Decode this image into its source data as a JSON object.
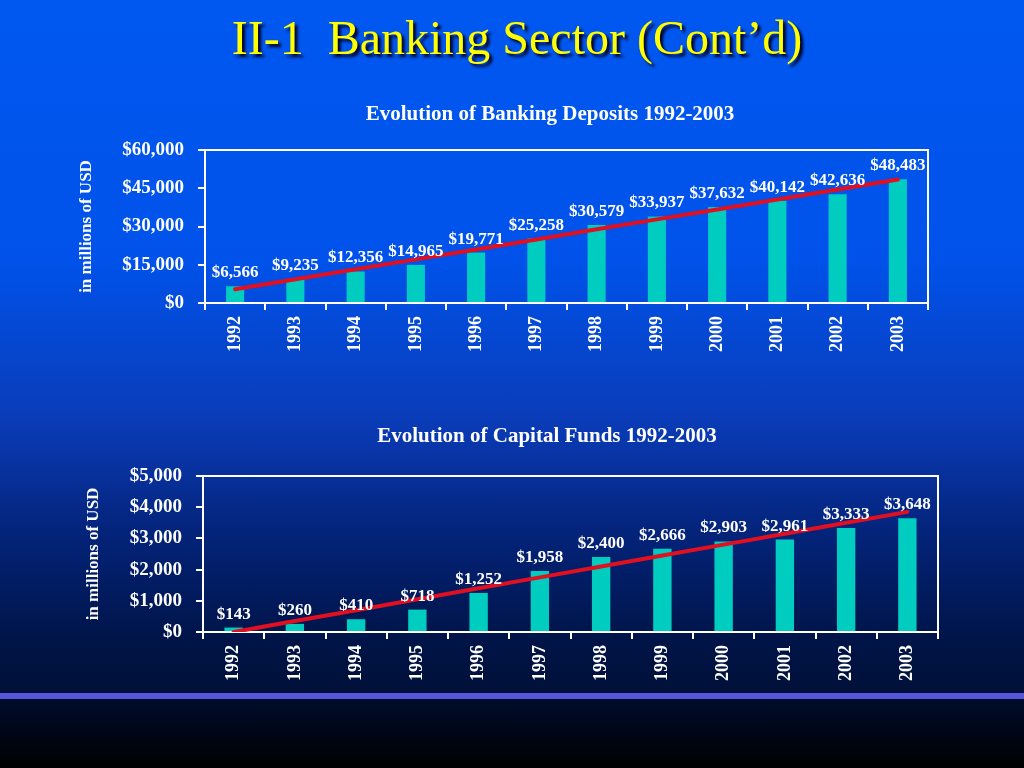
{
  "chart_data": [
    {
      "type": "bar",
      "title": "Evolution of Banking Deposits 1992-2003",
      "ylabel": "in millions of USD",
      "annotations": [
        "II-1  Banking Sector (Cont’d)"
      ],
      "categories": [
        "1992",
        "1993",
        "1994",
        "1995",
        "1996",
        "1997",
        "1998",
        "1999",
        "2000",
        "2001",
        "2002",
        "2003"
      ],
      "series": [
        {
          "color": "#00ccc0",
          "values": [
            6566,
            9235,
            12356,
            14965,
            19771,
            25258,
            30579,
            33937,
            37632,
            40142,
            42636,
            48483
          ],
          "value_labels": [
            "$6,566",
            "$9,235",
            "$12,356",
            "$14,965",
            "$19,771",
            "$25,258",
            "$30,579",
            "$33,937",
            "$37,632",
            "$40,142",
            "$42,636",
            "$48,483"
          ]
        },
        {
          "type": "line",
          "color": "#e01020",
          "values": [
            5400,
            9300,
            13200,
            17100,
            21000,
            24900,
            28900,
            32800,
            36700,
            40600,
            44500,
            48400
          ]
        }
      ],
      "ylim": [
        0,
        60000
      ],
      "yticks": [
        {
          "value": 0,
          "label": "$0"
        },
        {
          "value": 15000,
          "label": "$15,000"
        },
        {
          "value": 30000,
          "label": "$30,000"
        },
        {
          "value": 45000,
          "label": "$45,000"
        },
        {
          "value": 60000,
          "label": "$60,000"
        }
      ]
    },
    {
      "type": "bar",
      "title": "Evolution of Capital Funds 1992-2003",
      "ylabel": "in millions of USD",
      "categories": [
        "1992",
        "1993",
        "1994",
        "1995",
        "1996",
        "1997",
        "1998",
        "1999",
        "2000",
        "2001",
        "2002",
        "2003"
      ],
      "series": [
        {
          "color": "#00ccc0",
          "values": [
            143,
            260,
            410,
            718,
            1252,
            1958,
            2400,
            2666,
            2903,
            2961,
            3333,
            3648
          ],
          "value_labels": [
            "$143",
            "$260",
            "$410",
            "$718",
            "$1,252",
            "$1,958",
            "$2,400",
            "$2,666",
            "$2,903",
            "$2,961",
            "$3,333",
            "$3,648"
          ]
        },
        {
          "type": "line",
          "color": "#e01020",
          "values": [
            0,
            350,
            700,
            1050,
            1400,
            1750,
            2100,
            2450,
            2800,
            3150,
            3500,
            3850
          ]
        }
      ],
      "ylim": [
        0,
        5000
      ],
      "yticks": [
        {
          "value": 0,
          "label": "$0"
        },
        {
          "value": 1000,
          "label": "$1,000"
        },
        {
          "value": 2000,
          "label": "$2,000"
        },
        {
          "value": 3000,
          "label": "$3,000"
        },
        {
          "value": 4000,
          "label": "$4,000"
        },
        {
          "value": 5000,
          "label": "$5,000"
        }
      ]
    }
  ]
}
